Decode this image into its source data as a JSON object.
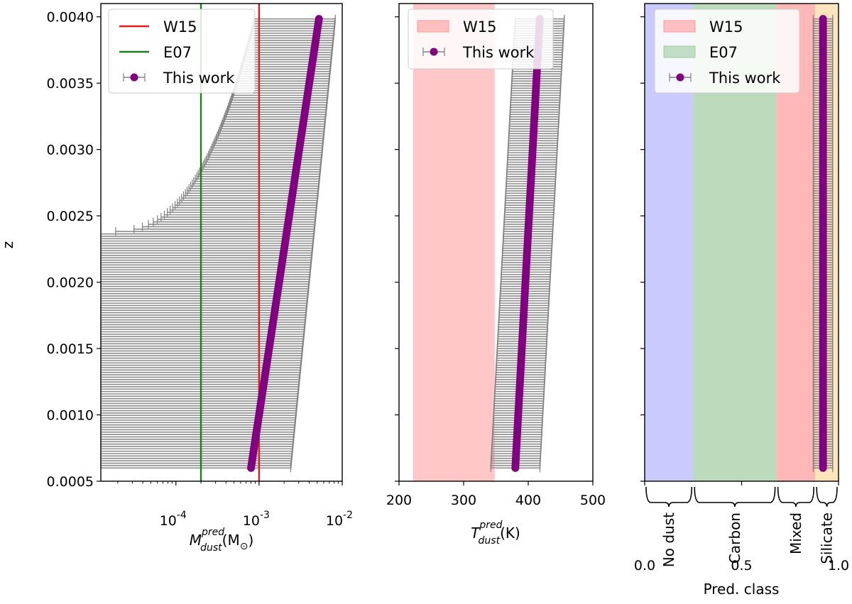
{
  "chart_data": [
    {
      "type": "scatter",
      "ylabel": "z",
      "xlabel_base": "M",
      "xlabel_sup": "pred",
      "xlabel_sub": "dust",
      "xlabel_unit": "(M",
      "xlabel_unit_sub": "⊙",
      "xlabel_close": ")",
      "xscale": "log",
      "xlim": [
        1.25e-05,
        0.01
      ],
      "ylim": [
        0.0005,
        0.0041
      ],
      "yticks": [
        "0.0005",
        "0.0010",
        "0.0015",
        "0.0020",
        "0.0025",
        "0.0030",
        "0.0035",
        "0.0040"
      ],
      "ytick_values": [
        0.0005,
        0.001,
        0.0015,
        0.002,
        0.0025,
        0.003,
        0.0035,
        0.004
      ],
      "xtick_exps": [
        "-4",
        "-3",
        "-2"
      ],
      "xtick_values": [
        0.0001,
        0.001,
        0.01
      ],
      "xtick_base": "10",
      "legend_position": "top-left",
      "reference_lines": [
        {
          "name": "W15",
          "value": 0.001,
          "color": "#e41a1c"
        },
        {
          "name": "E07",
          "value": 0.0002,
          "color": "#1a7f1a"
        }
      ],
      "legend": [
        {
          "label": "W15",
          "kind": "line",
          "color": "#e41a1c"
        },
        {
          "label": "E07",
          "kind": "line",
          "color": "#1a7f1a"
        },
        {
          "label": "This work",
          "kind": "errorpoint",
          "color": "#800080"
        }
      ],
      "series": [
        {
          "name": "This work",
          "color": "#800080",
          "errorbar_color": "#808080",
          "z_range": [
            0.0006,
            0.004
          ],
          "x_at_zmin": 0.0008,
          "x_at_zmax": 0.0053,
          "upper_at_zmin": 0.0024,
          "upper_at_zmax": 0.0083,
          "lower_open_below_z": 0.00238,
          "lower_at_z0024": 1.25e-05,
          "lower_at_zmax": 0.0009
        }
      ]
    },
    {
      "type": "scatter",
      "xlabel_base": "T",
      "xlabel_sup": "pred",
      "xlabel_sub": "dust",
      "xlabel_unit": "(K)",
      "xlim": [
        200,
        500
      ],
      "ylim": [
        0.0005,
        0.0041
      ],
      "xticks": [
        "200",
        "300",
        "400",
        "500"
      ],
      "xtick_values": [
        200,
        300,
        400,
        500
      ],
      "legend_position": "top-left",
      "bands": [
        {
          "name": "W15",
          "from": 222,
          "to": 348,
          "color": "#ff9999"
        }
      ],
      "legend": [
        {
          "label": "W15",
          "kind": "band",
          "color": "#ff9999"
        },
        {
          "label": "This work",
          "kind": "errorpoint",
          "color": "#800080"
        }
      ],
      "series": [
        {
          "name": "This work",
          "color": "#800080",
          "errorbar_color": "#808080",
          "z_range": [
            0.0006,
            0.004
          ],
          "x_at_zmin": 380,
          "x_at_zmax": 418,
          "halfwidth": 38
        }
      ]
    },
    {
      "type": "scatter",
      "xlabel": "Pred. class",
      "xlim": [
        0.0,
        1.0
      ],
      "ylim": [
        0.0005,
        0.0041
      ],
      "xticks": [
        "0.0",
        "0.5",
        "1.0"
      ],
      "xtick_values": [
        0.0,
        0.5,
        1.0
      ],
      "legend_position": "top-left",
      "bands": [
        {
          "name": "No dust",
          "from": 0.0,
          "to": 0.25,
          "color": "#b3b3ff"
        },
        {
          "name": "E07",
          "from": 0.25,
          "to": 0.68,
          "color": "#9fcc9f"
        },
        {
          "name": "W15",
          "from": 0.68,
          "to": 0.88,
          "color": "#ff9999"
        },
        {
          "name": "Silicate",
          "from": 0.88,
          "to": 1.0,
          "color": "#ffd9a0"
        }
      ],
      "class_labels": [
        {
          "label": "No dust",
          "from": 0.0,
          "to": 0.25
        },
        {
          "label": "Carbon",
          "from": 0.25,
          "to": 0.68
        },
        {
          "label": "Mixed",
          "from": 0.68,
          "to": 0.88
        },
        {
          "label": "Silicate",
          "from": 0.88,
          "to": 1.0
        }
      ],
      "legend": [
        {
          "label": "W15",
          "kind": "band",
          "color": "#ff9999"
        },
        {
          "label": "E07",
          "kind": "band",
          "color": "#9fcc9f"
        },
        {
          "label": "This work",
          "kind": "errorpoint",
          "color": "#800080"
        }
      ],
      "series": [
        {
          "name": "This work",
          "color": "#800080",
          "errorbar_color": "#808080",
          "z_range": [
            0.0006,
            0.004
          ],
          "x_value": 0.92,
          "halfwidth": 0.05
        }
      ]
    }
  ]
}
